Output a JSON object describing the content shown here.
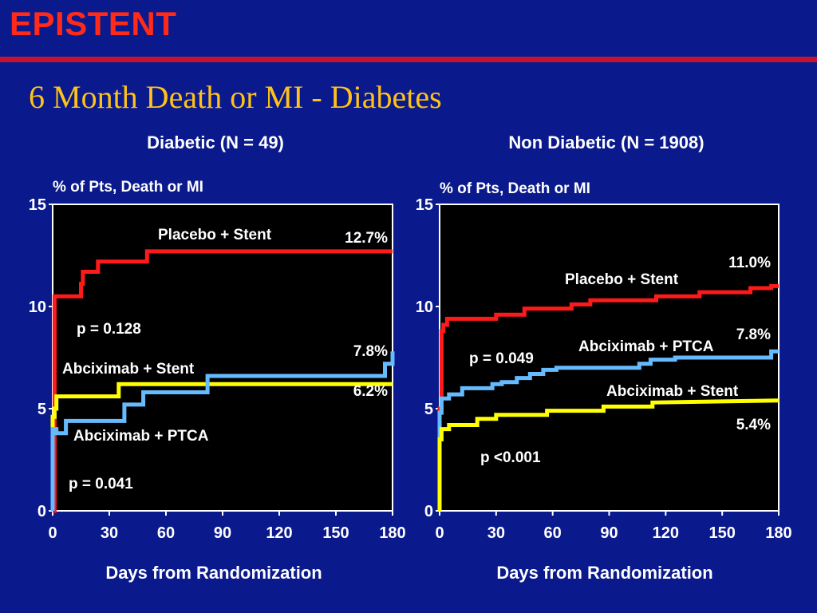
{
  "header": {
    "brand": "EPISTENT",
    "title": "6 Month Death or MI - Diabetes"
  },
  "colors": {
    "background": "#0a1a8c",
    "brand": "#ff2a1a",
    "rule": "#c4122f",
    "title": "#ffc21a",
    "placebo_stent": "#ff1a1a",
    "abciximab_stent": "#ffff00",
    "abciximab_ptca": "#66bbff",
    "plot_bg": "#000000"
  },
  "chart_data": [
    {
      "type": "line",
      "title": "Diabetic (N = 49)",
      "ylabel": "% of Pts, Death or MI",
      "xlabel": "Days from Randomization",
      "xlim": [
        0,
        180
      ],
      "ylim": [
        0,
        15
      ],
      "xticks": [
        0,
        30,
        60,
        90,
        120,
        150,
        180
      ],
      "yticks": [
        0,
        5,
        10,
        15
      ],
      "series": [
        {
          "name": "Placebo + Stent",
          "color": "#ff1a1a",
          "x": [
            0,
            1,
            1,
            15,
            15,
            16,
            16,
            24,
            24,
            50,
            50,
            180
          ],
          "y": [
            0,
            0,
            10.5,
            10.5,
            11.1,
            11.1,
            11.7,
            11.7,
            12.2,
            12.2,
            12.7,
            12.7
          ],
          "end_label": "12.7%"
        },
        {
          "name": "Abciximab + Stent",
          "color": "#ffff00",
          "x": [
            0,
            0,
            1,
            1,
            2,
            2,
            35,
            35,
            180
          ],
          "y": [
            0,
            4.6,
            4.6,
            5.0,
            5.0,
            5.6,
            5.6,
            6.2,
            6.2
          ],
          "end_label": "6.2%"
        },
        {
          "name": "Abciximab + PTCA",
          "color": "#66bbff",
          "x": [
            0,
            0,
            2,
            2,
            7,
            7,
            38,
            38,
            48,
            48,
            82,
            82,
            176,
            176,
            180,
            180
          ],
          "y": [
            0,
            4.0,
            4.0,
            3.8,
            3.8,
            4.4,
            4.4,
            5.2,
            5.2,
            5.8,
            5.8,
            6.6,
            6.6,
            7.2,
            7.2,
            7.8
          ],
          "end_label": "7.8%"
        }
      ],
      "annotations": [
        "p = 0.128",
        "p = 0.041"
      ]
    },
    {
      "type": "line",
      "title": "Non Diabetic (N = 1908)",
      "ylabel": "% of Pts, Death or MI",
      "xlabel": "Days from Randomization",
      "xlim": [
        0,
        180
      ],
      "ylim": [
        0,
        15
      ],
      "xticks": [
        0,
        30,
        60,
        90,
        120,
        150,
        180
      ],
      "yticks": [
        0,
        5,
        10,
        15
      ],
      "series": [
        {
          "name": "Placebo + Stent",
          "color": "#ff1a1a",
          "x": [
            0,
            0,
            1,
            1,
            2,
            2,
            4,
            4,
            30,
            30,
            45,
            45,
            70,
            70,
            80,
            80,
            115,
            115,
            138,
            138,
            165,
            165,
            176,
            176,
            180
          ],
          "y": [
            0,
            5.0,
            5.0,
            8.8,
            8.8,
            9.1,
            9.1,
            9.4,
            9.4,
            9.6,
            9.6,
            9.9,
            9.9,
            10.1,
            10.1,
            10.3,
            10.3,
            10.5,
            10.5,
            10.7,
            10.7,
            10.9,
            10.9,
            11.0,
            11.0
          ],
          "end_label": "11.0%"
        },
        {
          "name": "Abciximab + PTCA",
          "color": "#66bbff",
          "x": [
            0,
            0,
            1,
            1,
            5,
            5,
            12,
            12,
            28,
            28,
            33,
            33,
            41,
            41,
            48,
            48,
            55,
            55,
            62,
            62,
            106,
            106,
            112,
            112,
            125,
            125,
            176,
            176,
            180
          ],
          "y": [
            0,
            4.8,
            4.8,
            5.5,
            5.5,
            5.7,
            5.7,
            6.0,
            6.0,
            6.2,
            6.2,
            6.3,
            6.3,
            6.5,
            6.5,
            6.7,
            6.7,
            6.9,
            6.9,
            7.0,
            7.0,
            7.2,
            7.2,
            7.4,
            7.4,
            7.5,
            7.5,
            7.8,
            7.8
          ],
          "end_label": "7.8%"
        },
        {
          "name": "Abciximab + Stent",
          "color": "#ffff00",
          "x": [
            0,
            0,
            1,
            1,
            5,
            5,
            20,
            20,
            30,
            30,
            57,
            57,
            87,
            87,
            113,
            113,
            180
          ],
          "y": [
            0,
            3.5,
            3.5,
            4.0,
            4.0,
            4.2,
            4.2,
            4.5,
            4.5,
            4.7,
            4.7,
            4.9,
            4.9,
            5.1,
            5.1,
            5.3,
            5.4
          ],
          "end_label": "5.4%"
        }
      ],
      "annotations": [
        "p = 0.049",
        "p <0.001"
      ]
    }
  ]
}
